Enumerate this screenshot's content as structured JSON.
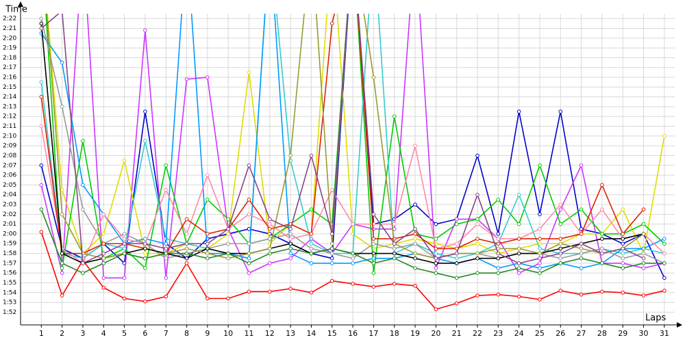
{
  "chart_data": {
    "type": "line",
    "y_label": "Time",
    "x_label": "Laps",
    "x": [
      1,
      2,
      3,
      4,
      5,
      6,
      7,
      8,
      9,
      10,
      11,
      12,
      13,
      14,
      15,
      16,
      17,
      18,
      19,
      20,
      21,
      22,
      23,
      24,
      25,
      26,
      27,
      28,
      29,
      30,
      31
    ],
    "xlim": [
      0,
      31.5
    ],
    "xticks": [
      1,
      2,
      3,
      4,
      5,
      6,
      7,
      8,
      9,
      10,
      11,
      12,
      13,
      14,
      15,
      16,
      17,
      18,
      19,
      20,
      21,
      22,
      23,
      24,
      25,
      26,
      27,
      28,
      29,
      30,
      31
    ],
    "ylim": [
      110.7,
      142.5
    ],
    "yticks": [
      {
        "value": 112,
        "label": "1:52"
      },
      {
        "value": 113,
        "label": "1:53"
      },
      {
        "value": 114,
        "label": "1:54"
      },
      {
        "value": 115,
        "label": "1:55"
      },
      {
        "value": 116,
        "label": "1:56"
      },
      {
        "value": 117,
        "label": "1:57"
      },
      {
        "value": 118,
        "label": "1:58"
      },
      {
        "value": 119,
        "label": "1:59"
      },
      {
        "value": 120,
        "label": "2:00"
      },
      {
        "value": 121,
        "label": "2:01"
      },
      {
        "value": 122,
        "label": "2:02"
      },
      {
        "value": 123,
        "label": "2:03"
      },
      {
        "value": 124,
        "label": "2:04"
      },
      {
        "value": 125,
        "label": "2:05"
      },
      {
        "value": 126,
        "label": "2:06"
      },
      {
        "value": 127,
        "label": "2:07"
      },
      {
        "value": 128,
        "label": "2:08"
      },
      {
        "value": 129,
        "label": "2:09"
      },
      {
        "value": 130,
        "label": "2:10"
      },
      {
        "value": 131,
        "label": "2:11"
      },
      {
        "value": 132,
        "label": "2:12"
      },
      {
        "value": 133,
        "label": "2:13"
      },
      {
        "value": 134,
        "label": "2:14"
      },
      {
        "value": 135,
        "label": "2:15"
      },
      {
        "value": 136,
        "label": "2:16"
      },
      {
        "value": 137,
        "label": "2:17"
      },
      {
        "value": 138,
        "label": "2:18"
      },
      {
        "value": 139,
        "label": "2:19"
      },
      {
        "value": 140,
        "label": "2:20"
      },
      {
        "value": 141,
        "label": "2:21"
      },
      {
        "value": 142,
        "label": "2:22"
      }
    ],
    "grid": true,
    "series": [
      {
        "color": "#ff0000",
        "values": [
          120.2,
          113.7,
          117.3,
          114.5,
          113.4,
          113.1,
          113.6,
          117,
          113.4,
          113.4,
          114.1,
          114.1,
          114.4,
          114,
          115.2,
          114.9,
          114.6,
          114.9,
          114.7,
          112.3,
          112.9,
          113.7,
          113.8,
          113.6,
          113.3,
          114.2,
          113.8,
          114.1,
          114,
          113.7,
          114.2
        ]
      },
      {
        "color": "#0000cc",
        "values": [
          127,
          118.5,
          117.5,
          119,
          117,
          132.5,
          119,
          117.5,
          119.5,
          120,
          120.5,
          120,
          119,
          118,
          117.5,
          150,
          121,
          121.5,
          123,
          121,
          121.5,
          128,
          120,
          132.5,
          122,
          132.5,
          120.5,
          120,
          119,
          120,
          115.5
        ]
      },
      {
        "color": "#cc33ff",
        "values": [
          125,
          116,
          150,
          115.5,
          115.5,
          140.8,
          115.5,
          135.8,
          136,
          120.5,
          116,
          117,
          117.5,
          119.5,
          118,
          121,
          120.5,
          120.5,
          150,
          116.5,
          121.5,
          121.5,
          119.5,
          116,
          117,
          122.5,
          127,
          117,
          117,
          116.5,
          117
        ]
      },
      {
        "color": "#dddd00",
        "values": [
          150,
          124.5,
          118,
          120,
          127.5,
          118,
          118,
          119,
          118.5,
          120,
          136.5,
          119,
          121,
          120,
          150,
          120,
          118.5,
          119,
          119.5,
          119,
          118.5,
          119,
          118,
          118.5,
          119,
          119,
          120,
          120,
          122.5,
          118,
          130
        ]
      },
      {
        "color": "#00cc00",
        "values": [
          150,
          116.5,
          129.5,
          117.5,
          118.5,
          116.5,
          127,
          119,
          123.5,
          121.5,
          119,
          119.5,
          121,
          122.5,
          121,
          150,
          116,
          132,
          120,
          119.5,
          121,
          121.5,
          123.5,
          121,
          127,
          121,
          122.5,
          120,
          120,
          121,
          119
        ]
      },
      {
        "color": "#33cccc",
        "values": [
          135.5,
          118,
          117.5,
          119,
          118.5,
          129.5,
          119.5,
          119,
          118.5,
          118,
          117.5,
          150,
          127.5,
          119,
          118,
          118,
          150,
          118,
          119,
          118,
          117.5,
          118,
          119,
          124,
          118.5,
          118,
          118,
          118.5,
          118,
          118.5,
          118
        ]
      },
      {
        "color": "#0099ff",
        "values": [
          140.5,
          137.5,
          125,
          122,
          119,
          119.5,
          119,
          150,
          118,
          118,
          117.5,
          150,
          118,
          117,
          117,
          117,
          117.5,
          117.5,
          118,
          117.5,
          117,
          117.5,
          116.5,
          117,
          116.5,
          117,
          116.5,
          117,
          118.5,
          118.5,
          119.5
        ]
      },
      {
        "color": "#999999",
        "values": [
          142,
          133,
          122.5,
          119,
          120,
          119,
          117.5,
          118,
          118.5,
          119,
          119,
          119.5,
          120,
          118.5,
          118,
          117.5,
          119,
          118.5,
          119,
          117.5,
          118,
          118,
          117.5,
          118,
          118,
          117.5,
          118,
          118.5,
          117.5,
          118,
          117
        ]
      },
      {
        "color": "#ff88aa",
        "values": [
          131,
          118.5,
          117,
          122,
          119.5,
          119,
          124.5,
          120,
          126,
          120.5,
          122,
          121,
          119.5,
          120,
          124.5,
          121,
          121,
          121,
          129,
          118.5,
          119,
          121,
          119.5,
          119.5,
          120.5,
          123,
          120,
          122.5,
          119.5,
          120,
          118
        ]
      },
      {
        "color": "#dd2200",
        "values": [
          134,
          118,
          118,
          119,
          119,
          118.5,
          118,
          121.5,
          120,
          120.5,
          123.5,
          120.5,
          121,
          120,
          141.5,
          150,
          119.5,
          119.5,
          120,
          118.5,
          118.5,
          119.5,
          119,
          119.5,
          119.5,
          119.5,
          120,
          125,
          120,
          122.5,
          null
        ]
      },
      {
        "color": "#000000",
        "values": [
          141.5,
          118,
          117,
          117.5,
          118,
          118.5,
          118,
          117.5,
          118.5,
          118,
          118,
          118.5,
          119,
          118,
          118.5,
          118,
          118,
          118,
          117.5,
          117,
          117,
          117.5,
          117.5,
          118,
          118,
          118.5,
          119,
          119.5,
          119.5,
          120,
          null
        ]
      },
      {
        "color": "#999933",
        "values": [
          150,
          122,
          118,
          117.5,
          118,
          117.5,
          118,
          118.5,
          118,
          117.5,
          118,
          118.5,
          128,
          150,
          119,
          150,
          136,
          119,
          118,
          117.5,
          118,
          118,
          118.5,
          118.5,
          118,
          119,
          118.5,
          118,
          118.5,
          120,
          null
        ]
      },
      {
        "color": "#228822",
        "values": [
          122.5,
          117,
          116,
          117,
          118,
          117.5,
          118,
          118,
          117.5,
          118,
          117,
          118,
          118.5,
          118,
          118.5,
          118,
          117,
          117.5,
          116.5,
          116,
          115.5,
          116,
          116,
          116.5,
          116,
          117,
          117.5,
          117,
          116.5,
          117,
          117
        ]
      },
      {
        "color": "#884488",
        "values": [
          141,
          142.8,
          117,
          118,
          119,
          119,
          118.5,
          119,
          119,
          120.5,
          127,
          121.5,
          120.5,
          128,
          120,
          150,
          122,
          119,
          120.5,
          117.5,
          118,
          124,
          118,
          117,
          117.5,
          118,
          119,
          118,
          118.5,
          117.5,
          null
        ]
      }
    ]
  }
}
